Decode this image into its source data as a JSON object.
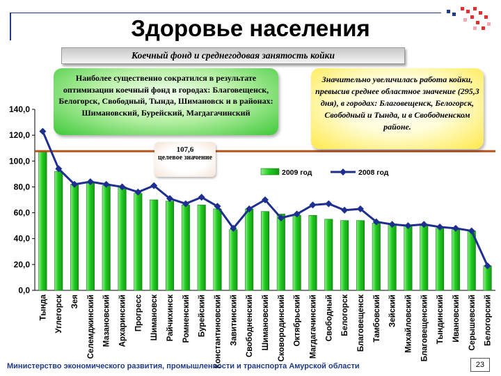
{
  "title": "Здоровье населения",
  "subtitle": "Коечный фонд и среднегодовая занятость койки",
  "notes": {
    "green": "Наиболее существенно сократился в результате оптимизации коечный фонд в городах: Благовещенск, Белогорск, Свободный, Тында, Шимановск и в районах: Шимановский, Бурейский, Магдагачинский",
    "yellow": "Значительно увеличилась работа койки, превысив среднее областное значение (295,3 дня), в городах: Благовещенск, Белогорск, Свободный и Тында, и в Свободненском районе."
  },
  "target": {
    "value": "107,6",
    "label": "целевое значение"
  },
  "footer": "Министерство экономического развития, промышленности и транспорта Амурской области",
  "page_number": "23",
  "colors": {
    "bar": "#22cc22",
    "line": "#1f2f8f",
    "target": "#b5541c",
    "title": "#000000"
  },
  "chart_data": {
    "type": "bar",
    "y_ticks": [
      "0,0",
      "20,0",
      "40,0",
      "60,0",
      "80,0",
      "100,0",
      "120,0",
      "140,0"
    ],
    "ylim": [
      0,
      140
    ],
    "target_line": 107.6,
    "categories": [
      "Тында",
      "Углегорск",
      "Зея",
      "Селемджинский",
      "Мазановский",
      "Архаринский",
      "Прогресс",
      "Шимановск",
      "Райчихинск",
      "Ромненский",
      "Бурейский",
      "Константиновский",
      "Завитинский",
      "Свободненский",
      "Шимановский",
      "Сковородинский",
      "Октябрьский",
      "Магдагачинский",
      "Свободный",
      "Белогорск",
      "Благовещенск",
      "Тамбовский",
      "Зейский",
      "Михайловский",
      "Благовещенский",
      "Тындинский",
      "Ивановский",
      "Серышевский",
      "Белогорский"
    ],
    "series": [
      {
        "name": "2009 год",
        "type": "bar",
        "values": [
          107,
          92,
          82,
          83,
          81,
          80,
          75,
          70,
          69,
          66,
          66,
          63,
          47,
          63,
          61,
          59,
          58,
          58,
          55,
          54,
          54,
          52,
          51,
          50,
          50,
          48,
          47,
          46,
          19
        ]
      },
      {
        "name": "2008 год",
        "type": "line",
        "values": [
          123,
          94,
          82,
          84,
          82,
          80,
          76,
          81,
          71,
          67,
          72,
          65,
          48,
          63,
          70,
          56,
          59,
          66,
          67,
          62,
          63,
          53,
          51,
          50,
          51,
          49,
          48,
          46,
          19
        ]
      }
    ],
    "legend": "top-right"
  }
}
